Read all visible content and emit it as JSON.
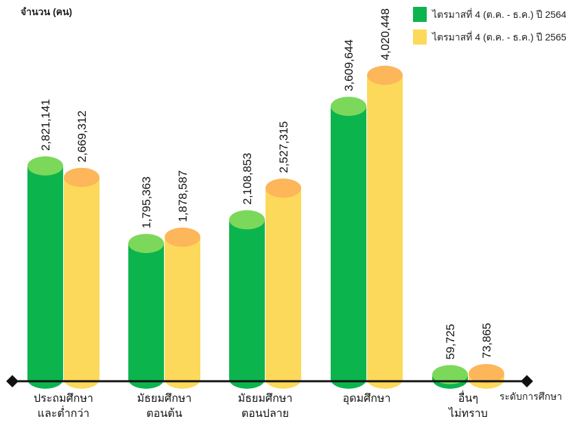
{
  "chart_data": {
    "type": "bar",
    "ylabel": "จำนวน (คน)",
    "xlabel": "ระดับการศึกษา",
    "legend_position": "top-right",
    "grid": false,
    "ylim": [
      0,
      4500000
    ],
    "categories": [
      [
        "ประถมศึกษา",
        "และต่ำกว่า"
      ],
      [
        "มัธยมศึกษา",
        "ตอนต้น"
      ],
      [
        "มัธยมศึกษา",
        "ตอนปลาย"
      ],
      [
        "อุดมศึกษา"
      ],
      [
        "อื่นๆ",
        "ไม่ทราบ"
      ]
    ],
    "series": [
      {
        "name": "ไตรมาสที่ 4 (ต.ค. - ธ.ค.) ปี 2564",
        "values": [
          2821141,
          1795363,
          2108853,
          3609644,
          59725
        ],
        "value_labels": [
          "2,821,141",
          "1,795,363",
          "2,108,853",
          "3,609,644",
          "59,725"
        ],
        "color": "#0cb44e",
        "top_color": "#7cd85a"
      },
      {
        "name": "ไตรมาสที่ 4 (ต.ค. - ธ.ค.) ปี 2565",
        "values": [
          2669312,
          1878587,
          2527315,
          4020448,
          73865
        ],
        "value_labels": [
          "2,669,312",
          "1,878,587",
          "2,527,315",
          "4,020,448",
          "73,865"
        ],
        "color": "#fcd95a",
        "top_color": "#fdb65a"
      }
    ]
  }
}
